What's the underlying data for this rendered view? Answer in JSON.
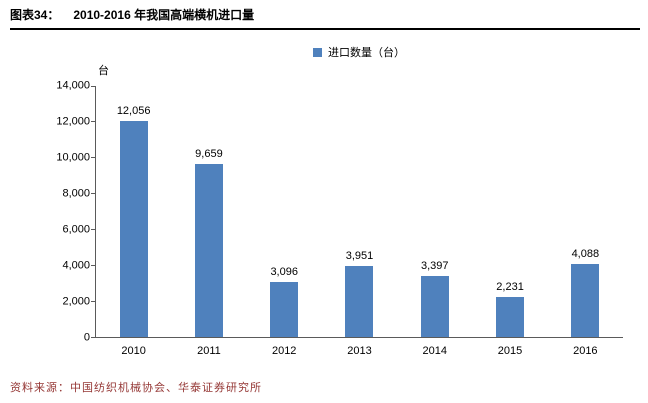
{
  "header": {
    "label": "图表34：",
    "title": "2010-2016 年我国高端横机进口量"
  },
  "legend": {
    "label": "进口数量（台）",
    "color": "#4F81BD"
  },
  "chart_data": {
    "type": "bar",
    "title": "2010-2016 年我国高端横机进口量",
    "categories": [
      "2010",
      "2011",
      "2012",
      "2013",
      "2014",
      "2015",
      "2016"
    ],
    "values": [
      12056,
      9659,
      3096,
      3951,
      3397,
      2231,
      4088
    ],
    "value_labels": [
      "12,056",
      "9,659",
      "3,096",
      "3,951",
      "3,397",
      "2,231",
      "4,088"
    ],
    "series_name": "进口数量（台）",
    "xlabel": "",
    "ylabel": "台",
    "ylim": [
      0,
      14000
    ],
    "ytick_interval": 2000,
    "ytick_labels": [
      "0",
      "2,000",
      "4,000",
      "6,000",
      "8,000",
      "10,000",
      "12,000",
      "14,000"
    ],
    "grid": false,
    "legend_position": "top",
    "bar_color": "#4F81BD",
    "axis_color": "#5a5a5a"
  },
  "footer": {
    "source": "资料来源：中国纺织机械协会、华泰证券研究所"
  }
}
